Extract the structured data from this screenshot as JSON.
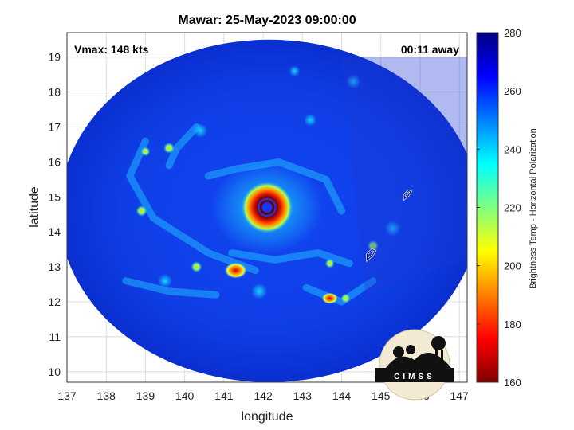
{
  "chart_data": {
    "type": "heatmap",
    "title": "Mawar: 25-May-2023 09:00:00",
    "xlabel": "longitude",
    "ylabel": "latitude",
    "xlim": [
      137,
      147.2
    ],
    "ylim": [
      9.7,
      19.7
    ],
    "xticks": [
      "137",
      "138",
      "139",
      "140",
      "141",
      "142",
      "143",
      "144",
      "145",
      "146",
      "147"
    ],
    "yticks": [
      "10",
      "11",
      "12",
      "13",
      "14",
      "15",
      "16",
      "17",
      "18",
      "19"
    ],
    "grid": true,
    "colorbar": {
      "label": "Brightness Temp - Horizontal Polarization",
      "range": [
        160,
        280
      ],
      "ticks": [
        "160",
        "180",
        "200",
        "220",
        "240",
        "260",
        "280"
      ],
      "colormap": "jet"
    },
    "storm_center": {
      "lon": 142.1,
      "lat": 14.7
    },
    "annotations": {
      "vmax": "Vmax: 148 kts",
      "time_offset": "00:11 away"
    },
    "logo_text": "CIMSS"
  }
}
